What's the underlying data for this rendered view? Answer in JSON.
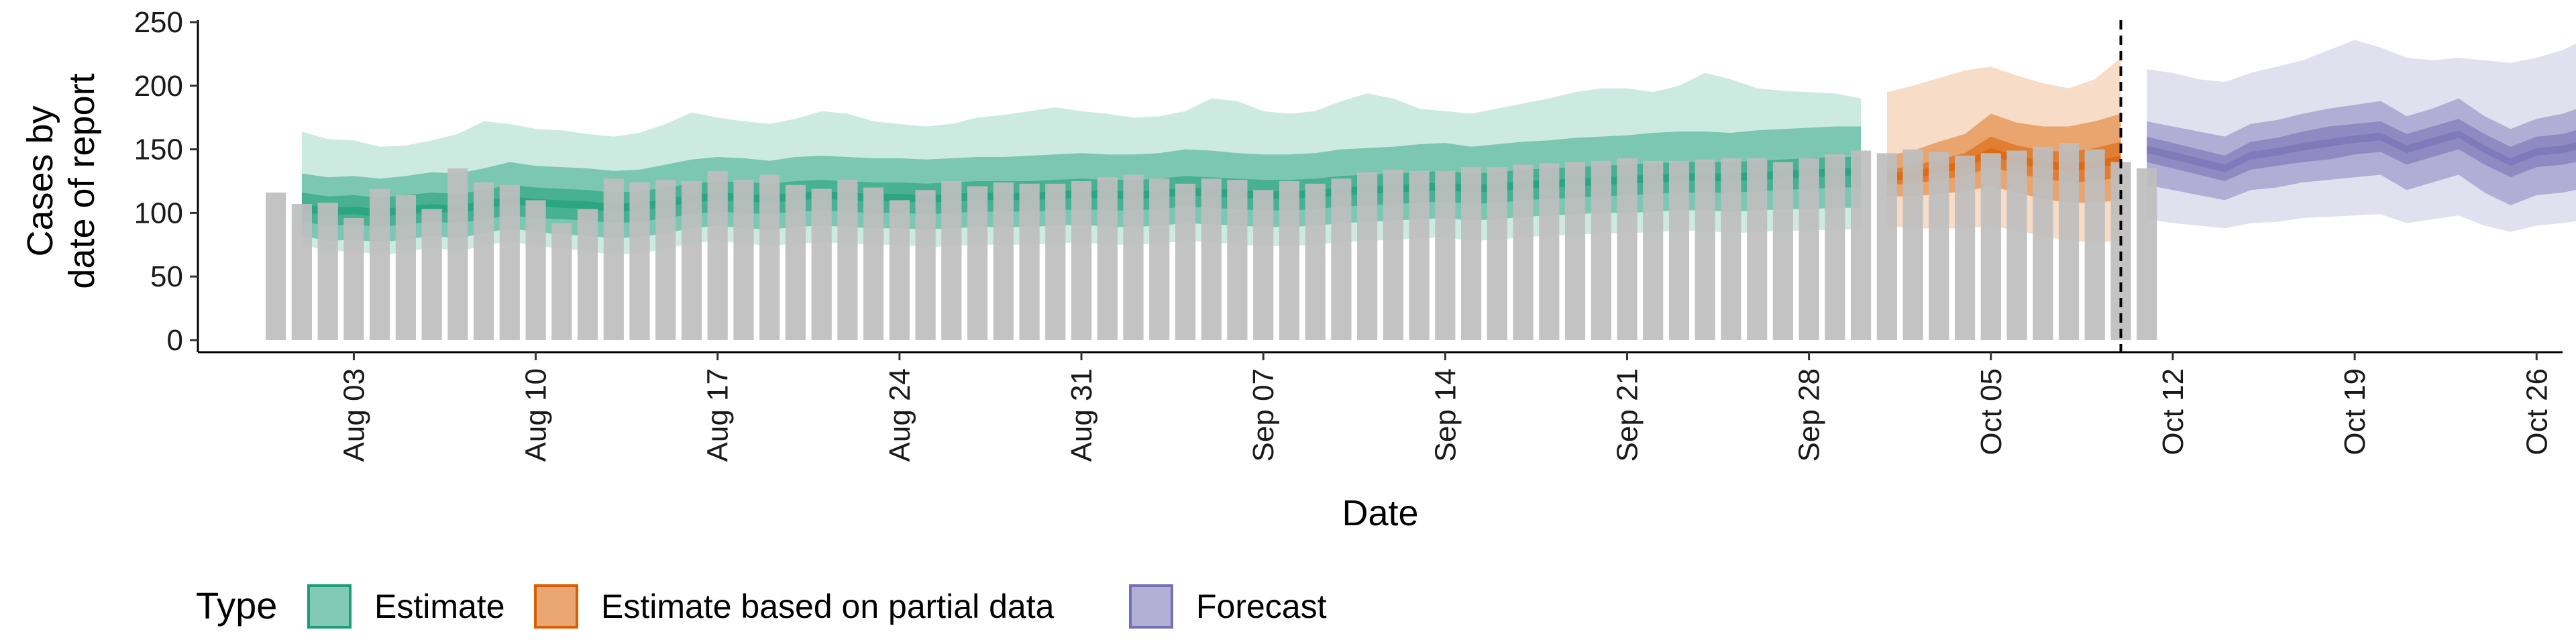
{
  "chart_data": {
    "type": "bar+ribbon",
    "xlabel": "Date",
    "ylabel_lines": [
      "Cases by",
      "date of report"
    ],
    "ylim": [
      0,
      250
    ],
    "yticks": [
      0,
      50,
      100,
      150,
      200,
      250
    ],
    "x_range": [
      "2020-07-28",
      "2020-10-27"
    ],
    "xticks": [
      {
        "date": "2020-08-03",
        "label": "Aug 03"
      },
      {
        "date": "2020-08-10",
        "label": "Aug 10"
      },
      {
        "date": "2020-08-17",
        "label": "Aug 17"
      },
      {
        "date": "2020-08-24",
        "label": "Aug 24"
      },
      {
        "date": "2020-08-31",
        "label": "Aug 31"
      },
      {
        "date": "2020-09-07",
        "label": "Sep 07"
      },
      {
        "date": "2020-09-14",
        "label": "Sep 14"
      },
      {
        "date": "2020-09-21",
        "label": "Sep 21"
      },
      {
        "date": "2020-09-28",
        "label": "Sep 28"
      },
      {
        "date": "2020-10-05",
        "label": "Oct 05"
      },
      {
        "date": "2020-10-12",
        "label": "Oct 12"
      },
      {
        "date": "2020-10-19",
        "label": "Oct 19"
      },
      {
        "date": "2020-10-26",
        "label": "Oct 26"
      }
    ],
    "vline_date": "2020-10-10",
    "bars": {
      "start_date": "2020-07-31",
      "color": "#bebebe",
      "values": [
        116,
        107,
        108,
        96,
        119,
        114,
        103,
        135,
        124,
        122,
        110,
        92,
        103,
        127,
        124,
        126,
        125,
        133,
        126,
        130,
        122,
        119,
        126,
        120,
        110,
        118,
        125,
        121,
        124,
        123,
        123,
        125,
        128,
        130,
        127,
        123,
        127,
        126,
        118,
        125,
        123,
        127,
        132,
        134,
        133,
        133,
        136,
        136,
        138,
        139,
        140,
        141,
        143,
        141,
        141,
        142,
        143,
        143,
        140,
        143,
        146,
        149,
        147,
        150,
        148,
        145,
        147,
        149,
        152,
        155,
        150,
        140,
        135
      ]
    },
    "ribbons": [
      {
        "type": "Estimate",
        "color": "#1b9e77",
        "start_date": "2020-08-01",
        "median": [
          104,
          101,
          102,
          100,
          102,
          104,
          103,
          106,
          110,
          108,
          107,
          106,
          104,
          105,
          108,
          111,
          113,
          112,
          111,
          113,
          114,
          113,
          112,
          112,
          111,
          112,
          113,
          113,
          113,
          114,
          115,
          114,
          114,
          115,
          117,
          116,
          115,
          114,
          114,
          115,
          117,
          118,
          119,
          120,
          121,
          119,
          120,
          122,
          123,
          124,
          125,
          126,
          127,
          128,
          128,
          128,
          129,
          130,
          131,
          132,
          132
        ],
        "bands": [
          {
            "lower": [
              93,
              90,
              91,
              89,
              91,
              93,
              92,
              95,
              98,
              96,
              95,
              94,
              92,
              93,
              96,
              99,
              101,
              100,
              99,
              101,
              102,
              101,
              100,
              100,
              99,
              100,
              101,
              101,
              101,
              102,
              103,
              102,
              102,
              103,
              105,
              104,
              103,
              102,
              102,
              103,
              105,
              106,
              107,
              108,
              109,
              107,
              108,
              110,
              111,
              112,
              113,
              114,
              115,
              116,
              116,
              116,
              117,
              118,
              119,
              120,
              120
            ],
            "upper": [
              116,
              113,
              114,
              112,
              114,
              116,
              115,
              118,
              122,
              120,
              119,
              118,
              116,
              117,
              120,
              123,
              125,
              124,
              123,
              125,
              126,
              125,
              124,
              124,
              123,
              124,
              125,
              125,
              125,
              126,
              127,
              126,
              126,
              127,
              129,
              128,
              127,
              126,
              126,
              127,
              129,
              130,
              131,
              132,
              133,
              131,
              132,
              134,
              135,
              136,
              137,
              138,
              139,
              140,
              140,
              140,
              141,
              142,
              143,
              144,
              144
            ]
          },
          {
            "lower": [
              82,
              78,
              79,
              77,
              79,
              82,
              80,
              84,
              88,
              85,
              83,
              82,
              80,
              81,
              84,
              88,
              90,
              88,
              87,
              89,
              90,
              89,
              88,
              88,
              87,
              88,
              89,
              89,
              89,
              90,
              91,
              89,
              89,
              90,
              92,
              91,
              90,
              89,
              89,
              90,
              92,
              93,
              94,
              95,
              96,
              94,
              95,
              97,
              98,
              99,
              100,
              100,
              101,
              102,
              102,
              101,
              102,
              103,
              103,
              104,
              104
            ],
            "upper": [
              131,
              128,
              129,
              127,
              129,
              132,
              131,
              135,
              140,
              137,
              136,
              135,
              133,
              134,
              138,
              142,
              144,
              143,
              141,
              144,
              145,
              144,
              143,
              143,
              142,
              143,
              144,
              144,
              145,
              146,
              147,
              146,
              146,
              147,
              150,
              149,
              147,
              146,
              146,
              147,
              150,
              151,
              152,
              154,
              155,
              152,
              154,
              156,
              157,
              159,
              160,
              161,
              163,
              164,
              164,
              163,
              165,
              166,
              167,
              168,
              168
            ]
          },
          {
            "lower": [
              75,
              70,
              70,
              67,
              69,
              73,
              70,
              74,
              78,
              74,
              72,
              70,
              67,
              68,
              72,
              76,
              78,
              76,
              74,
              76,
              77,
              76,
              75,
              75,
              73,
              74,
              75,
              75,
              75,
              76,
              77,
              75,
              75,
              76,
              78,
              77,
              75,
              74,
              74,
              75,
              77,
              78,
              79,
              80,
              81,
              78,
              79,
              81,
              82,
              83,
              84,
              84,
              85,
              86,
              86,
              84,
              85,
              86,
              86,
              87,
              87
            ],
            "upper": [
              164,
              158,
              157,
              152,
              153,
              157,
              162,
              172,
              170,
              166,
              165,
              162,
              160,
              163,
              170,
              179,
              175,
              172,
              170,
              174,
              180,
              178,
              172,
              170,
              168,
              170,
              175,
              177,
              180,
              183,
              180,
              178,
              175,
              176,
              180,
              190,
              188,
              180,
              178,
              180,
              188,
              194,
              190,
              182,
              180,
              178,
              182,
              186,
              190,
              195,
              198,
              198,
              195,
              200,
              210,
              205,
              198,
              196,
              195,
              194,
              190
            ]
          }
        ]
      },
      {
        "type": "Estimate based on partial data",
        "color": "#d95f02",
        "start_date": "2020-10-01",
        "median": [
          128,
          130,
          134,
          138,
          148,
          142,
          138,
          136,
          138,
          142
        ],
        "bands": [
          {
            "lower": [
              122,
              123,
              126,
              129,
              136,
              131,
              127,
              124,
              125,
              128
            ],
            "upper": [
              134,
              137,
              142,
              147,
              160,
              153,
              149,
              148,
              151,
              156
            ]
          },
          {
            "lower": [
              113,
              113,
              115,
              117,
              121,
              116,
              111,
              108,
              108,
              110
            ],
            "upper": [
              145,
              149,
              156,
              162,
              178,
              171,
              168,
              168,
              172,
              178
            ]
          },
          {
            "lower": [
              90,
              88,
              88,
              88,
              90,
              86,
              82,
              78,
              77,
              78
            ],
            "upper": [
              195,
              200,
              206,
              212,
              215,
              208,
              202,
              198,
              205,
              222
            ]
          }
        ]
      },
      {
        "type": "Forecast",
        "color": "#7570b3",
        "start_date": "2020-10-11",
        "median": [
          150,
          145,
          140,
          135,
          145,
          148,
          152,
          155,
          158,
          160,
          150,
          156,
          162,
          150,
          140,
          148,
          150,
          155,
          160
        ],
        "bands": [
          {
            "lower": [
              140,
              135,
              130,
              125,
              134,
              137,
              140,
              142,
              146,
              148,
              138,
              144,
              150,
              138,
              128,
              136,
              138,
              142,
              146
            ],
            "upper": [
              160,
              155,
              150,
              145,
              156,
              159,
              164,
              168,
              170,
              172,
              162,
              168,
              174,
              162,
              152,
              160,
              162,
              168,
              174
            ]
          },
          {
            "lower": [
              122,
              118,
              114,
              110,
              118,
              120,
              124,
              126,
              128,
              130,
              118,
              124,
              130,
              116,
              106,
              114,
              116,
              120,
              122
            ],
            "upper": [
              172,
              168,
              164,
              160,
              170,
              173,
              178,
              182,
              185,
              188,
              176,
              182,
              190,
              176,
              166,
              174,
              178,
              185,
              198
            ]
          },
          {
            "lower": [
              95,
              92,
              90,
              88,
              92,
              93,
              96,
              97,
              98,
              99,
              92,
              95,
              98,
              90,
              85,
              90,
              92,
              95,
              96
            ],
            "upper": [
              213,
              210,
              205,
              203,
              210,
              215,
              220,
              228,
              236,
              230,
              222,
              220,
              222,
              220,
              218,
              222,
              228,
              238,
              245
            ]
          }
        ]
      }
    ],
    "legend": {
      "title": "Type",
      "position": "bottom-left",
      "items": [
        {
          "label": "Estimate",
          "color": "#1b9e77"
        },
        {
          "label": "Estimate based on partial data",
          "color": "#d95f02"
        },
        {
          "label": "Forecast",
          "color": "#7570b3"
        }
      ]
    }
  }
}
